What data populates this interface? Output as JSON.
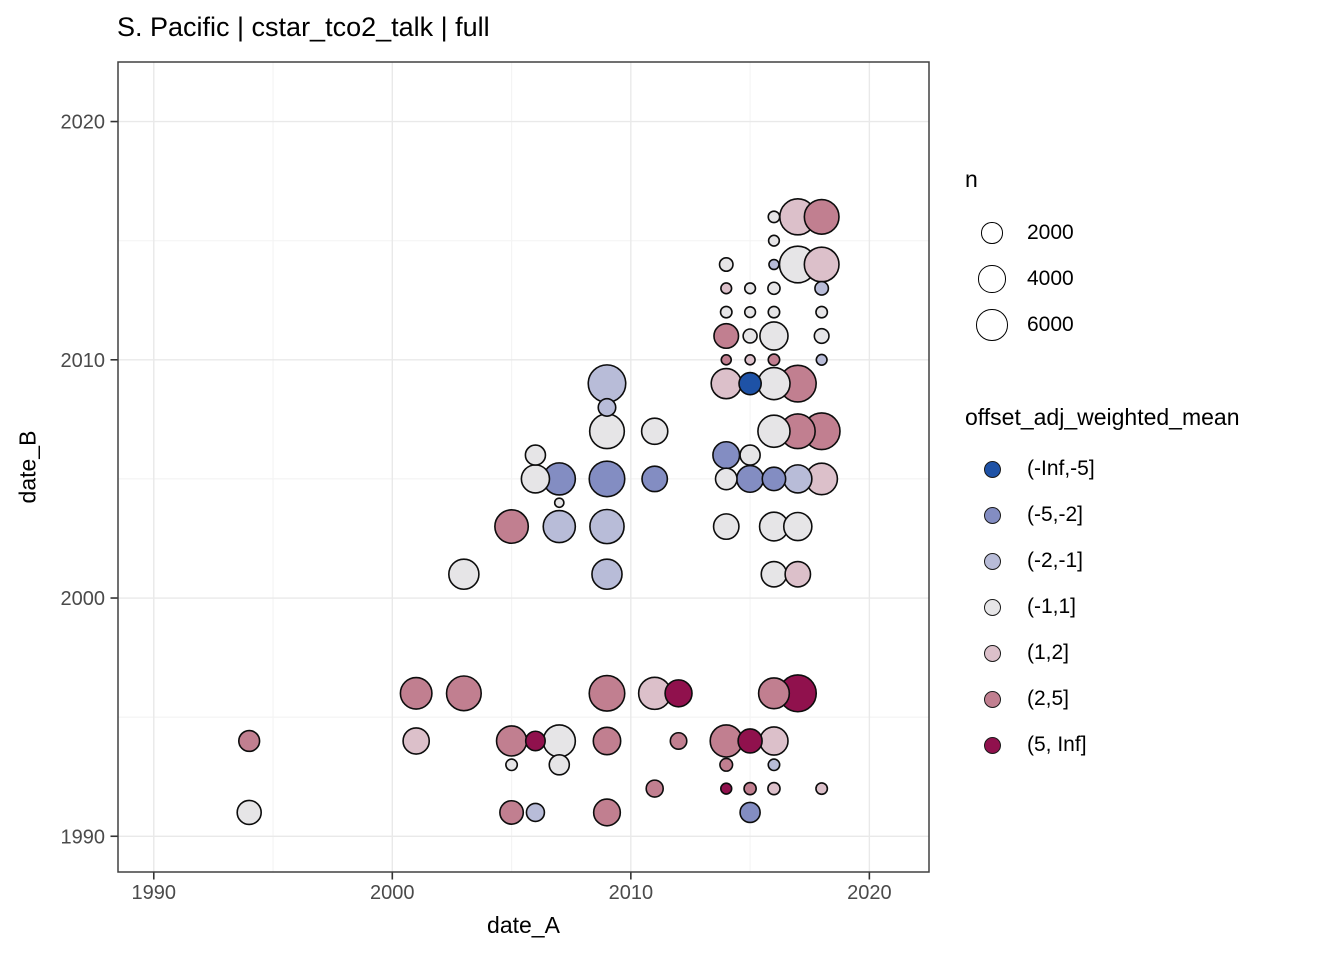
{
  "chart_data": {
    "type": "scatter",
    "title": "S. Pacific | cstar_tco2_talk | full",
    "xlabel": "date_A",
    "ylabel": "date_B",
    "xlim": [
      1988.5,
      2022.5
    ],
    "ylim": [
      1988.5,
      2022.5
    ],
    "x_ticks": [
      1990,
      2000,
      2010,
      2020
    ],
    "y_ticks": [
      1990,
      2000,
      2010,
      2020
    ],
    "minor_gridlines": [
      1995,
      2005,
      2015
    ],
    "grid": "on",
    "legend_position": "right",
    "size_legend": {
      "title": "n",
      "entries": [
        {
          "n": 2000,
          "label": "2000"
        },
        {
          "n": 4000,
          "label": "4000"
        },
        {
          "n": 6000,
          "label": "6000"
        }
      ]
    },
    "color_legend": {
      "title": "offset_adj_weighted_mean",
      "bins": [
        {
          "label": "(-Inf,-5]",
          "color": "#1e52a6"
        },
        {
          "label": "(-5,-2]",
          "color": "#838dc2"
        },
        {
          "label": "(-2,-1]",
          "color": "#b8bcd8"
        },
        {
          "label": "(-1,1]",
          "color": "#e6e5e7"
        },
        {
          "label": "(1,2]",
          "color": "#dcc0ca"
        },
        {
          "label": "(2,5]",
          "color": "#c17f90"
        },
        {
          "label": "(5, Inf]",
          "color": "#90114d"
        }
      ]
    },
    "points": [
      {
        "x": 1994,
        "y": 1991,
        "n": 2800,
        "bin": "(-1,1]"
      },
      {
        "x": 2005,
        "y": 1991,
        "n": 2600,
        "bin": "(2,5]"
      },
      {
        "x": 2006,
        "y": 1991,
        "n": 1100,
        "bin": "(-2,-1]"
      },
      {
        "x": 2009,
        "y": 1991,
        "n": 3800,
        "bin": "(2,5]"
      },
      {
        "x": 2015,
        "y": 1991,
        "n": 1600,
        "bin": "(-5,-2]"
      },
      {
        "x": 2011,
        "y": 1992,
        "n": 900,
        "bin": "(2,5]"
      },
      {
        "x": 2014,
        "y": 1992,
        "n": 100,
        "bin": "(5, Inf]"
      },
      {
        "x": 2015,
        "y": 1992,
        "n": 200,
        "bin": "(2,5]"
      },
      {
        "x": 2016,
        "y": 1992,
        "n": 200,
        "bin": "(1,2]"
      },
      {
        "x": 2018,
        "y": 1992,
        "n": 140,
        "bin": "(1,2]"
      },
      {
        "x": 2005,
        "y": 1993,
        "n": 140,
        "bin": "(-1,1]"
      },
      {
        "x": 2007,
        "y": 1993,
        "n": 1600,
        "bin": "(-1,1]"
      },
      {
        "x": 2014,
        "y": 1993,
        "n": 250,
        "bin": "(2,5]"
      },
      {
        "x": 2016,
        "y": 1993,
        "n": 140,
        "bin": "(-2,-1]"
      },
      {
        "x": 1994,
        "y": 1994,
        "n": 1800,
        "bin": "(2,5]"
      },
      {
        "x": 2001,
        "y": 1994,
        "n": 3600,
        "bin": "(1,2]"
      },
      {
        "x": 2005,
        "y": 1994,
        "n": 5300,
        "bin": "(2,5]"
      },
      {
        "x": 2006,
        "y": 1994,
        "n": 1450,
        "bin": "(5, Inf]"
      },
      {
        "x": 2007,
        "y": 1994,
        "n": 6300,
        "bin": "(-1,1]"
      },
      {
        "x": 2009,
        "y": 1994,
        "n": 4100,
        "bin": "(2,5]"
      },
      {
        "x": 2012,
        "y": 1994,
        "n": 800,
        "bin": "(2,5]"
      },
      {
        "x": 2014,
        "y": 1994,
        "n": 6300,
        "bin": "(2,5]"
      },
      {
        "x": 2015,
        "y": 1994,
        "n": 2800,
        "bin": "(5, Inf]"
      },
      {
        "x": 2016,
        "y": 1994,
        "n": 4400,
        "bin": "(1,2]"
      },
      {
        "x": 2001,
        "y": 1996,
        "n": 6000,
        "bin": "(2,5]"
      },
      {
        "x": 2003,
        "y": 1996,
        "n": 7700,
        "bin": "(2,5]"
      },
      {
        "x": 2009,
        "y": 1996,
        "n": 8200,
        "bin": "(2,5]"
      },
      {
        "x": 2011,
        "y": 1996,
        "n": 6300,
        "bin": "(1,2]"
      },
      {
        "x": 2012,
        "y": 1996,
        "n": 3900,
        "bin": "(5, Inf]"
      },
      {
        "x": 2016,
        "y": 1996,
        "n": 5600,
        "bin": "(2,5]"
      },
      {
        "x": 2017,
        "y": 1996,
        "n": 9000,
        "bin": "(5, Inf]"
      },
      {
        "x": 2003,
        "y": 2001,
        "n": 5300,
        "bin": "(-1,1]"
      },
      {
        "x": 2009,
        "y": 2001,
        "n": 5300,
        "bin": "(-2,-1]"
      },
      {
        "x": 2016,
        "y": 2001,
        "n": 3300,
        "bin": "(-1,1]"
      },
      {
        "x": 2017,
        "y": 2001,
        "n": 3300,
        "bin": "(1,2]"
      },
      {
        "x": 2005,
        "y": 2003,
        "n": 7000,
        "bin": "(2,5]"
      },
      {
        "x": 2007,
        "y": 2003,
        "n": 6300,
        "bin": "(-2,-1]"
      },
      {
        "x": 2009,
        "y": 2003,
        "n": 7400,
        "bin": "(-2,-1]"
      },
      {
        "x": 2014,
        "y": 2003,
        "n": 3300,
        "bin": "(-1,1]"
      },
      {
        "x": 2016,
        "y": 2003,
        "n": 4700,
        "bin": "(-1,1]"
      },
      {
        "x": 2017,
        "y": 2003,
        "n": 4400,
        "bin": "(-1,1]"
      },
      {
        "x": 2007,
        "y": 2004,
        "n": 20,
        "bin": "(-1,1]"
      },
      {
        "x": 2006,
        "y": 2005,
        "n": 4400,
        "bin": "(-1,1]"
      },
      {
        "x": 2007,
        "y": 2005,
        "n": 6300,
        "bin": "(-5,-2]"
      },
      {
        "x": 2009,
        "y": 2005,
        "n": 8200,
        "bin": "(-5,-2]"
      },
      {
        "x": 2011,
        "y": 2005,
        "n": 3300,
        "bin": "(-5,-2]"
      },
      {
        "x": 2014,
        "y": 2005,
        "n": 2000,
        "bin": "(-1,1]"
      },
      {
        "x": 2015,
        "y": 2005,
        "n": 3800,
        "bin": "(-5,-2]"
      },
      {
        "x": 2016,
        "y": 2005,
        "n": 2600,
        "bin": "(-5,-2]"
      },
      {
        "x": 2017,
        "y": 2005,
        "n": 4400,
        "bin": "(-2,-1]"
      },
      {
        "x": 2018,
        "y": 2005,
        "n": 6000,
        "bin": "(1,2]"
      },
      {
        "x": 2006,
        "y": 2006,
        "n": 1600,
        "bin": "(-1,1]"
      },
      {
        "x": 2014,
        "y": 2006,
        "n": 3800,
        "bin": "(-5,-2]"
      },
      {
        "x": 2015,
        "y": 2006,
        "n": 1600,
        "bin": "(-1,1]"
      },
      {
        "x": 2009,
        "y": 2007,
        "n": 7700,
        "bin": "(-1,1]"
      },
      {
        "x": 2011,
        "y": 2007,
        "n": 3600,
        "bin": "(-1,1]"
      },
      {
        "x": 2016,
        "y": 2007,
        "n": 6300,
        "bin": "(-1,1]"
      },
      {
        "x": 2017,
        "y": 2007,
        "n": 7700,
        "bin": "(2,5]"
      },
      {
        "x": 2018,
        "y": 2007,
        "n": 8900,
        "bin": "(2,5]"
      },
      {
        "x": 2009,
        "y": 2008,
        "n": 1000,
        "bin": "(-2,-1]"
      },
      {
        "x": 2009,
        "y": 2009,
        "n": 9400,
        "bin": "(-2,-1]"
      },
      {
        "x": 2014,
        "y": 2009,
        "n": 5300,
        "bin": "(1,2]"
      },
      {
        "x": 2015,
        "y": 2009,
        "n": 2200,
        "bin": "(-Inf,-5]"
      },
      {
        "x": 2016,
        "y": 2009,
        "n": 6300,
        "bin": "(-1,1]"
      },
      {
        "x": 2017,
        "y": 2009,
        "n": 8900,
        "bin": "(2,5]"
      },
      {
        "x": 2014,
        "y": 2010,
        "n": 50,
        "bin": "(2,5]"
      },
      {
        "x": 2015,
        "y": 2010,
        "n": 50,
        "bin": "(1,2]"
      },
      {
        "x": 2016,
        "y": 2010,
        "n": 140,
        "bin": "(2,5]"
      },
      {
        "x": 2018,
        "y": 2010,
        "n": 90,
        "bin": "(-2,-1]"
      },
      {
        "x": 2014,
        "y": 2011,
        "n": 3000,
        "bin": "(2,5]"
      },
      {
        "x": 2015,
        "y": 2011,
        "n": 400,
        "bin": "(-1,1]"
      },
      {
        "x": 2016,
        "y": 2011,
        "n": 4400,
        "bin": "(-1,1]"
      },
      {
        "x": 2018,
        "y": 2011,
        "n": 500,
        "bin": "(-1,1]"
      },
      {
        "x": 2014,
        "y": 2012,
        "n": 140,
        "bin": "(-1,1]"
      },
      {
        "x": 2015,
        "y": 2012,
        "n": 90,
        "bin": "(-1,1]"
      },
      {
        "x": 2016,
        "y": 2012,
        "n": 140,
        "bin": "(-1,1]"
      },
      {
        "x": 2018,
        "y": 2012,
        "n": 140,
        "bin": "(-1,1]"
      },
      {
        "x": 2014,
        "y": 2013,
        "n": 90,
        "bin": "(1,2]"
      },
      {
        "x": 2015,
        "y": 2013,
        "n": 90,
        "bin": "(-1,1]"
      },
      {
        "x": 2016,
        "y": 2013,
        "n": 200,
        "bin": "(-1,1]"
      },
      {
        "x": 2018,
        "y": 2013,
        "n": 340,
        "bin": "(-2,-1]"
      },
      {
        "x": 2014,
        "y": 2014,
        "n": 340,
        "bin": "(-1,1]"
      },
      {
        "x": 2016,
        "y": 2014,
        "n": 50,
        "bin": "(-2,-1]"
      },
      {
        "x": 2017,
        "y": 2014,
        "n": 8900,
        "bin": "(-1,1]"
      },
      {
        "x": 2018,
        "y": 2014,
        "n": 7700,
        "bin": "(1,2]"
      },
      {
        "x": 2016,
        "y": 2015,
        "n": 90,
        "bin": "(-1,1]"
      },
      {
        "x": 2016,
        "y": 2016,
        "n": 140,
        "bin": "(-1,1]"
      },
      {
        "x": 2017,
        "y": 2016,
        "n": 8500,
        "bin": "(1,2]"
      },
      {
        "x": 2018,
        "y": 2016,
        "n": 7700,
        "bin": "(2,5]"
      }
    ]
  }
}
